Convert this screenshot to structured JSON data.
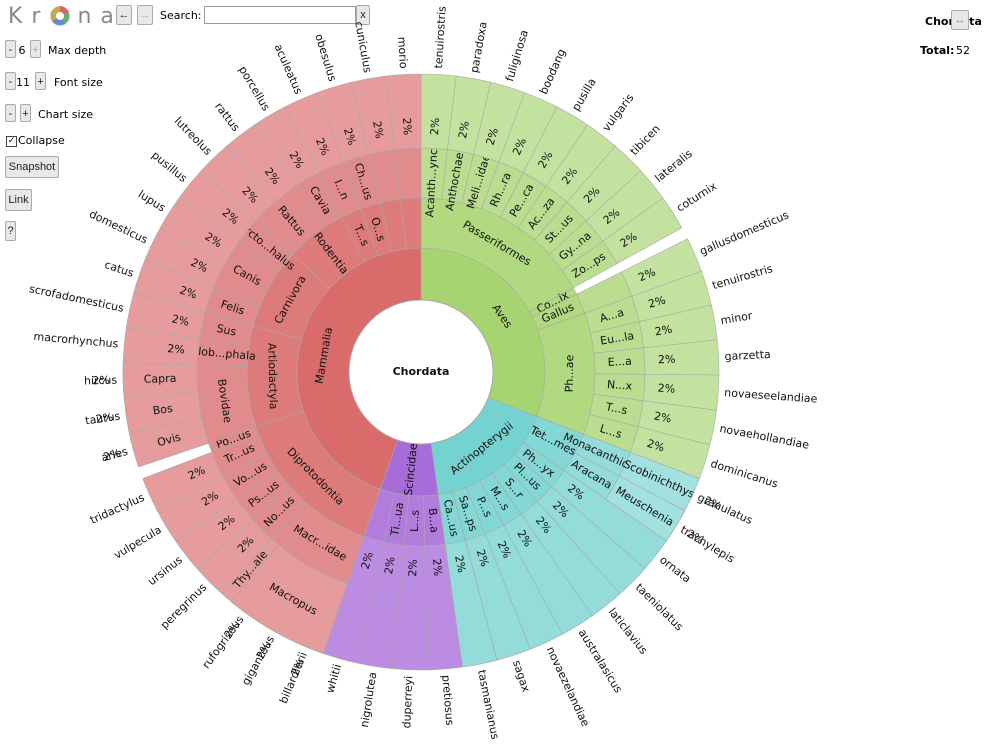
{
  "app": {
    "logo_text": "Krona",
    "back_arrow": "←",
    "forward_arrow": "→",
    "search_label": "Search:",
    "search_value": "",
    "clear_button": "x",
    "max_depth": "6",
    "max_depth_label": "Max depth",
    "font_size": "11",
    "font_size_label": "Font size",
    "chart_size_label": "Chart size",
    "minus": "-",
    "plus": "+",
    "collapse_label": "Collapse",
    "collapse_checked": true,
    "snapshot_button": "Snapshot",
    "link_button": "Link",
    "help_button": "?",
    "focus_name": "Chordata",
    "focus_expand": "↔",
    "total_label": "Total:",
    "total_value": "52"
  },
  "chart_data": {
    "type": "sunburst",
    "root": "Chordata",
    "total": 52,
    "tree": [
      {
        "name": "Aves",
        "color": "#a6d470",
        "children": [
          {
            "name": "Passeriformes",
            "children": [
              {
                "name": "Acanth...ynchus",
                "children": [
                  {
                    "name": "tenuirostris",
                    "pct": "2%"
                  }
                ]
              },
              {
                "name": "Anthochaera",
                "children": [
                  {
                    "name": "paradoxa",
                    "pct": "2%"
                  }
                ]
              },
              {
                "name": "Meli...idae",
                "children": [
                  {
                    "name": "fuliginosa",
                    "pct": "2%"
                  }
                ]
              },
              {
                "name": "Rh...ra",
                "children": [
                  {
                    "name": "boodang",
                    "pct": "2%"
                  }
                ]
              },
              {
                "name": "Pe...ca",
                "children": [
                  {
                    "name": "pusilla",
                    "pct": "2%"
                  }
                ]
              },
              {
                "name": "Ac...za",
                "children": [
                  {
                    "name": "vulgaris",
                    "pct": "2%"
                  }
                ]
              },
              {
                "name": "St...us",
                "children": [
                  {
                    "name": "tibicen",
                    "pct": "2%"
                  }
                ]
              },
              {
                "name": "Gy...na",
                "children": [
                  {
                    "name": "lateralis",
                    "pct": "2%"
                  }
                ]
              },
              {
                "name": "Zo...ps",
                "children": [
                  {
                    "name": "coturnix",
                    "pct": "2%"
                  }
                ]
              }
            ]
          },
          {
            "name": "Co...ix",
            "children": []
          },
          {
            "name": "Gallus",
            "children": [
              {
                "name": "",
                "children": [
                  {
                    "name": "gallusdomesticus",
                    "pct": "2%"
                  }
                ]
              }
            ]
          },
          {
            "name": "Ph...ae",
            "children": [
              {
                "name": "A...a",
                "children": [
                  {
                    "name": "tenuirostris",
                    "pct": "2%"
                  }
                ]
              },
              {
                "name": "Eu...la",
                "children": [
                  {
                    "name": "minor",
                    "pct": "2%"
                  }
                ]
              },
              {
                "name": "E...a",
                "children": [
                  {
                    "name": "garzetta",
                    "pct": "2%"
                  }
                ]
              },
              {
                "name": "N...x",
                "children": [
                  {
                    "name": "novaeseelandiae",
                    "pct": "2%"
                  }
                ]
              },
              {
                "name": "T...s",
                "children": [
                  {
                    "name": "novaehollandiae",
                    "pct": "2%"
                  }
                ]
              },
              {
                "name": "L...s",
                "children": [
                  {
                    "name": "dominicanus",
                    "pct": "2%"
                  }
                ]
              }
            ]
          }
        ]
      },
      {
        "name": "Actinopterygii",
        "color": "#74d2d0",
        "children": [
          {
            "name": "Tet...mes",
            "children": [
              {
                "name": "Monacanthidae",
                "children": [
                  {
                    "name": "Scobinichthys",
                    "children": [
                      {
                        "name": "granulatus",
                        "pct": "2%"
                      }
                    ]
                  }
                ]
              },
              {
                "name": "Aracana",
                "children": [
                  {
                    "name": "Meuschenia",
                    "children": [
                      {
                        "name": "trachylepis",
                        "pct": "2%"
                      }
                    ]
                  }
                ]
              }
            ]
          },
          {
            "name": "Ph...yx",
            "children": [
              {
                "name": "ornata",
                "pct": "2%"
              }
            ]
          },
          {
            "name": "Pl...us",
            "children": [
              {
                "name": "taeniolatus",
                "pct": "2%"
              }
            ]
          },
          {
            "name": "S...r",
            "children": [
              {
                "name": "laticlavius",
                "pct": "2%"
              }
            ]
          },
          {
            "name": "M...s",
            "children": [
              {
                "name": "australasicus",
                "pct": "2%"
              }
            ]
          },
          {
            "name": "P...s",
            "children": [
              {
                "name": "novaezelandiae",
                "pct": "2%"
              }
            ]
          },
          {
            "name": "Sa...ps",
            "children": [
              {
                "name": "sagax",
                "pct": "2%"
              }
            ]
          },
          {
            "name": "Ca...us",
            "children": [
              {
                "name": "tasmanianus",
                "pct": "2%"
              }
            ]
          }
        ]
      },
      {
        "name": "Scincidae",
        "color": "#a86cd8",
        "children": [
          {
            "name": "B...a",
            "children": [
              {
                "name": "pretiosus",
                "pct": "2%"
              }
            ]
          },
          {
            "name": "L...s",
            "children": [
              {
                "name": "duperreyi",
                "pct": "2%"
              }
            ]
          },
          {
            "name": "Ti...ua",
            "children": [
              {
                "name": "nigrolutea",
                "pct": "2%"
              }
            ]
          },
          {
            "name": "",
            "children": [
              {
                "name": "whitii",
                "pct": "2%"
              }
            ]
          }
        ]
      },
      {
        "name": "Mammalia",
        "color": "#d96b6b",
        "children": [
          {
            "name": "Diprotodontia",
            "children": [
              {
                "name": "Macr...idae",
                "children": [
                  {
                    "name": "Macropus",
                    "children": [
                      {
                        "name": "billardierii",
                        "pct": "2%"
                      },
                      {
                        "name": "giganteus",
                        "pct": "2%"
                      },
                      {
                        "name": "rufogriseus",
                        "pct": "2%"
                      }
                    ]
                  },
                  {
                    "name": "Thy...ale",
                    "children": []
                  }
                ]
              },
              {
                "name": "No...us",
                "children": [
                  {
                    "name": "peregrinus",
                    "pct": "2%"
                  }
                ]
              },
              {
                "name": "Ps...us",
                "children": [
                  {
                    "name": "ursinus",
                    "pct": "2%"
                  }
                ]
              },
              {
                "name": "Vo...us",
                "children": [
                  {
                    "name": "vulpecula",
                    "pct": "2%"
                  }
                ]
              },
              {
                "name": "Tr...us",
                "children": [
                  {
                    "name": "tridactylus",
                    "pct": "2%"
                  }
                ]
              },
              {
                "name": "Po...us",
                "children": []
              }
            ]
          },
          {
            "name": "Artiodactyla",
            "children": [
              {
                "name": "Bovidae",
                "children": [
                  {
                    "name": "Ovis",
                    "children": [
                      {
                        "name": "aries",
                        "pct": "2%"
                      }
                    ]
                  },
                  {
                    "name": "Bos",
                    "children": [
                      {
                        "name": "taurus",
                        "pct": "2%"
                      }
                    ]
                  },
                  {
                    "name": "Capra",
                    "children": [
                      {
                        "name": "hircus",
                        "pct": "2%"
                      }
                    ]
                  }
                ]
              },
              {
                "name": "Glob...phala",
                "children": [
                  {
                    "name": "macrorhynchus",
                    "pct": "2%"
                  }
                ]
              },
              {
                "name": "Sus",
                "children": [
                  {
                    "name": "scrofadomesticus",
                    "pct": "2%"
                  }
                ]
              }
            ]
          },
          {
            "name": "Carnivora",
            "children": [
              {
                "name": "Felis",
                "children": [
                  {
                    "name": "catus",
                    "pct": "2%"
                  }
                ]
              },
              {
                "name": "Canis",
                "children": [
                  {
                    "name": "domesticus",
                    "pct": "2%"
                  },
                  {
                    "name": "lupus",
                    "pct": "2%"
                  }
                ]
              },
              {
                "name": "Arcto...halus",
                "children": [
                  {
                    "name": "pusillus",
                    "pct": "2%"
                  }
                ]
              }
            ]
          },
          {
            "name": "Rodentia",
            "children": [
              {
                "name": "Rattus",
                "children": [
                  {
                    "name": "lutreolus",
                    "pct": "2%"
                  },
                  {
                    "name": "rattus",
                    "pct": "2%"
                  }
                ]
              },
              {
                "name": "Cavia",
                "children": [
                  {
                    "name": "porcellus",
                    "pct": "2%"
                  }
                ]
              }
            ]
          },
          {
            "name": "T...s",
            "children": [
              {
                "name": "I...n",
                "children": [
                  {
                    "name": "aculeatus",
                    "pct": "2%"
                  }
                ]
              }
            ]
          },
          {
            "name": "O...s",
            "children": [
              {
                "name": "Ch...us",
                "children": [
                  {
                    "name": "obesulus",
                    "pct": "2%"
                  }
                ]
              }
            ]
          },
          {
            "name": "",
            "children": [
              {
                "name": "",
                "children": [
                  {
                    "name": "cuniculus",
                    "pct": "2%"
                  }
                ]
              }
            ]
          },
          {
            "name": "",
            "children": [
              {
                "name": "",
                "children": [
                  {
                    "name": "morio",
                    "pct": "2%"
                  }
                ]
              }
            ]
          }
        ]
      }
    ]
  }
}
